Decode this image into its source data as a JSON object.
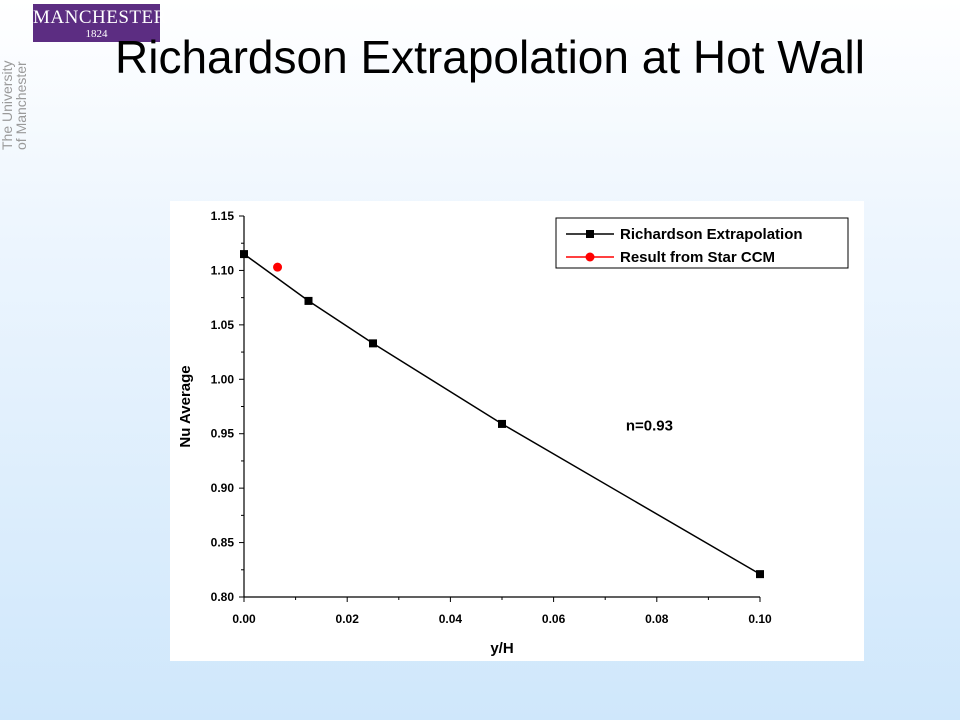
{
  "logo": {
    "name": "MANCHESTER",
    "year": "1824",
    "line1": "The University",
    "line2": "of Manchester"
  },
  "slide": {
    "title": "Richardson Extrapolation at Hot Wall"
  },
  "chart_data": {
    "type": "line",
    "xlabel": "y/H",
    "ylabel": "Nu Average",
    "xlim": [
      0.0,
      0.1
    ],
    "ylim": [
      0.8,
      1.15
    ],
    "x_ticks": [
      "0.00",
      "0.02",
      "0.04",
      "0.06",
      "0.08",
      "0.10"
    ],
    "y_ticks": [
      "0.80",
      "0.85",
      "0.90",
      "0.95",
      "1.00",
      "1.05",
      "1.10",
      "1.15"
    ],
    "grid": false,
    "legend_position": "top-right",
    "series": [
      {
        "name": "Richardson Extrapolation",
        "color": "#000000",
        "marker": "square",
        "x": [
          0.0,
          0.0125,
          0.025,
          0.05,
          0.1
        ],
        "y": [
          1.115,
          1.072,
          1.033,
          0.959,
          0.821
        ]
      },
      {
        "name": "Result from Star CCM",
        "color": "#ff0000",
        "marker": "circle",
        "x": [
          0.0065
        ],
        "y": [
          1.103
        ]
      }
    ],
    "annotations": [
      {
        "text": "n=0.93",
        "x": 0.074,
        "y": 0.953
      }
    ]
  }
}
